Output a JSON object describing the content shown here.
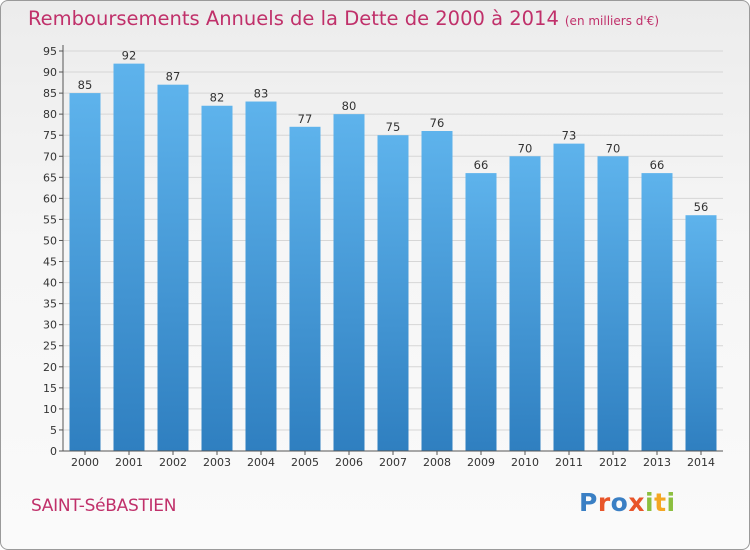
{
  "chart_data": {
    "type": "bar",
    "title": "Remboursements Annuels de la Dette de 2000 à 2014",
    "subtitle": "(en milliers d'€)",
    "categories": [
      "2000",
      "2001",
      "2002",
      "2003",
      "2004",
      "2005",
      "2006",
      "2007",
      "2008",
      "2009",
      "2010",
      "2011",
      "2012",
      "2013",
      "2014"
    ],
    "values": [
      85,
      92,
      87,
      82,
      83,
      77,
      80,
      75,
      76,
      66,
      70,
      73,
      70,
      66,
      56
    ],
    "ylim": [
      0,
      95
    ],
    "yticks": [
      0,
      5,
      10,
      15,
      20,
      25,
      30,
      35,
      40,
      45,
      50,
      55,
      60,
      65,
      70,
      75,
      80,
      85,
      90,
      95
    ],
    "xlabel": "",
    "ylabel": "",
    "grid": true
  },
  "footer": {
    "place_name": "SAINT-SéBASTIEN",
    "brand_letters": [
      "P",
      "r",
      "o",
      "x",
      "i",
      "t",
      "i"
    ]
  },
  "colors": {
    "title": "#c0306a",
    "place_name": "#c0306a",
    "bar_top": "#5eb3ec",
    "bar_bottom": "#2f7fc0",
    "axis": "#555555",
    "grid": "#d6d6d6",
    "brand": [
      "#3a7fc4",
      "#e8552a",
      "#3a7fc4",
      "#e8552a",
      "#8cbf3f",
      "#f4a623",
      "#8cbf3f"
    ]
  }
}
